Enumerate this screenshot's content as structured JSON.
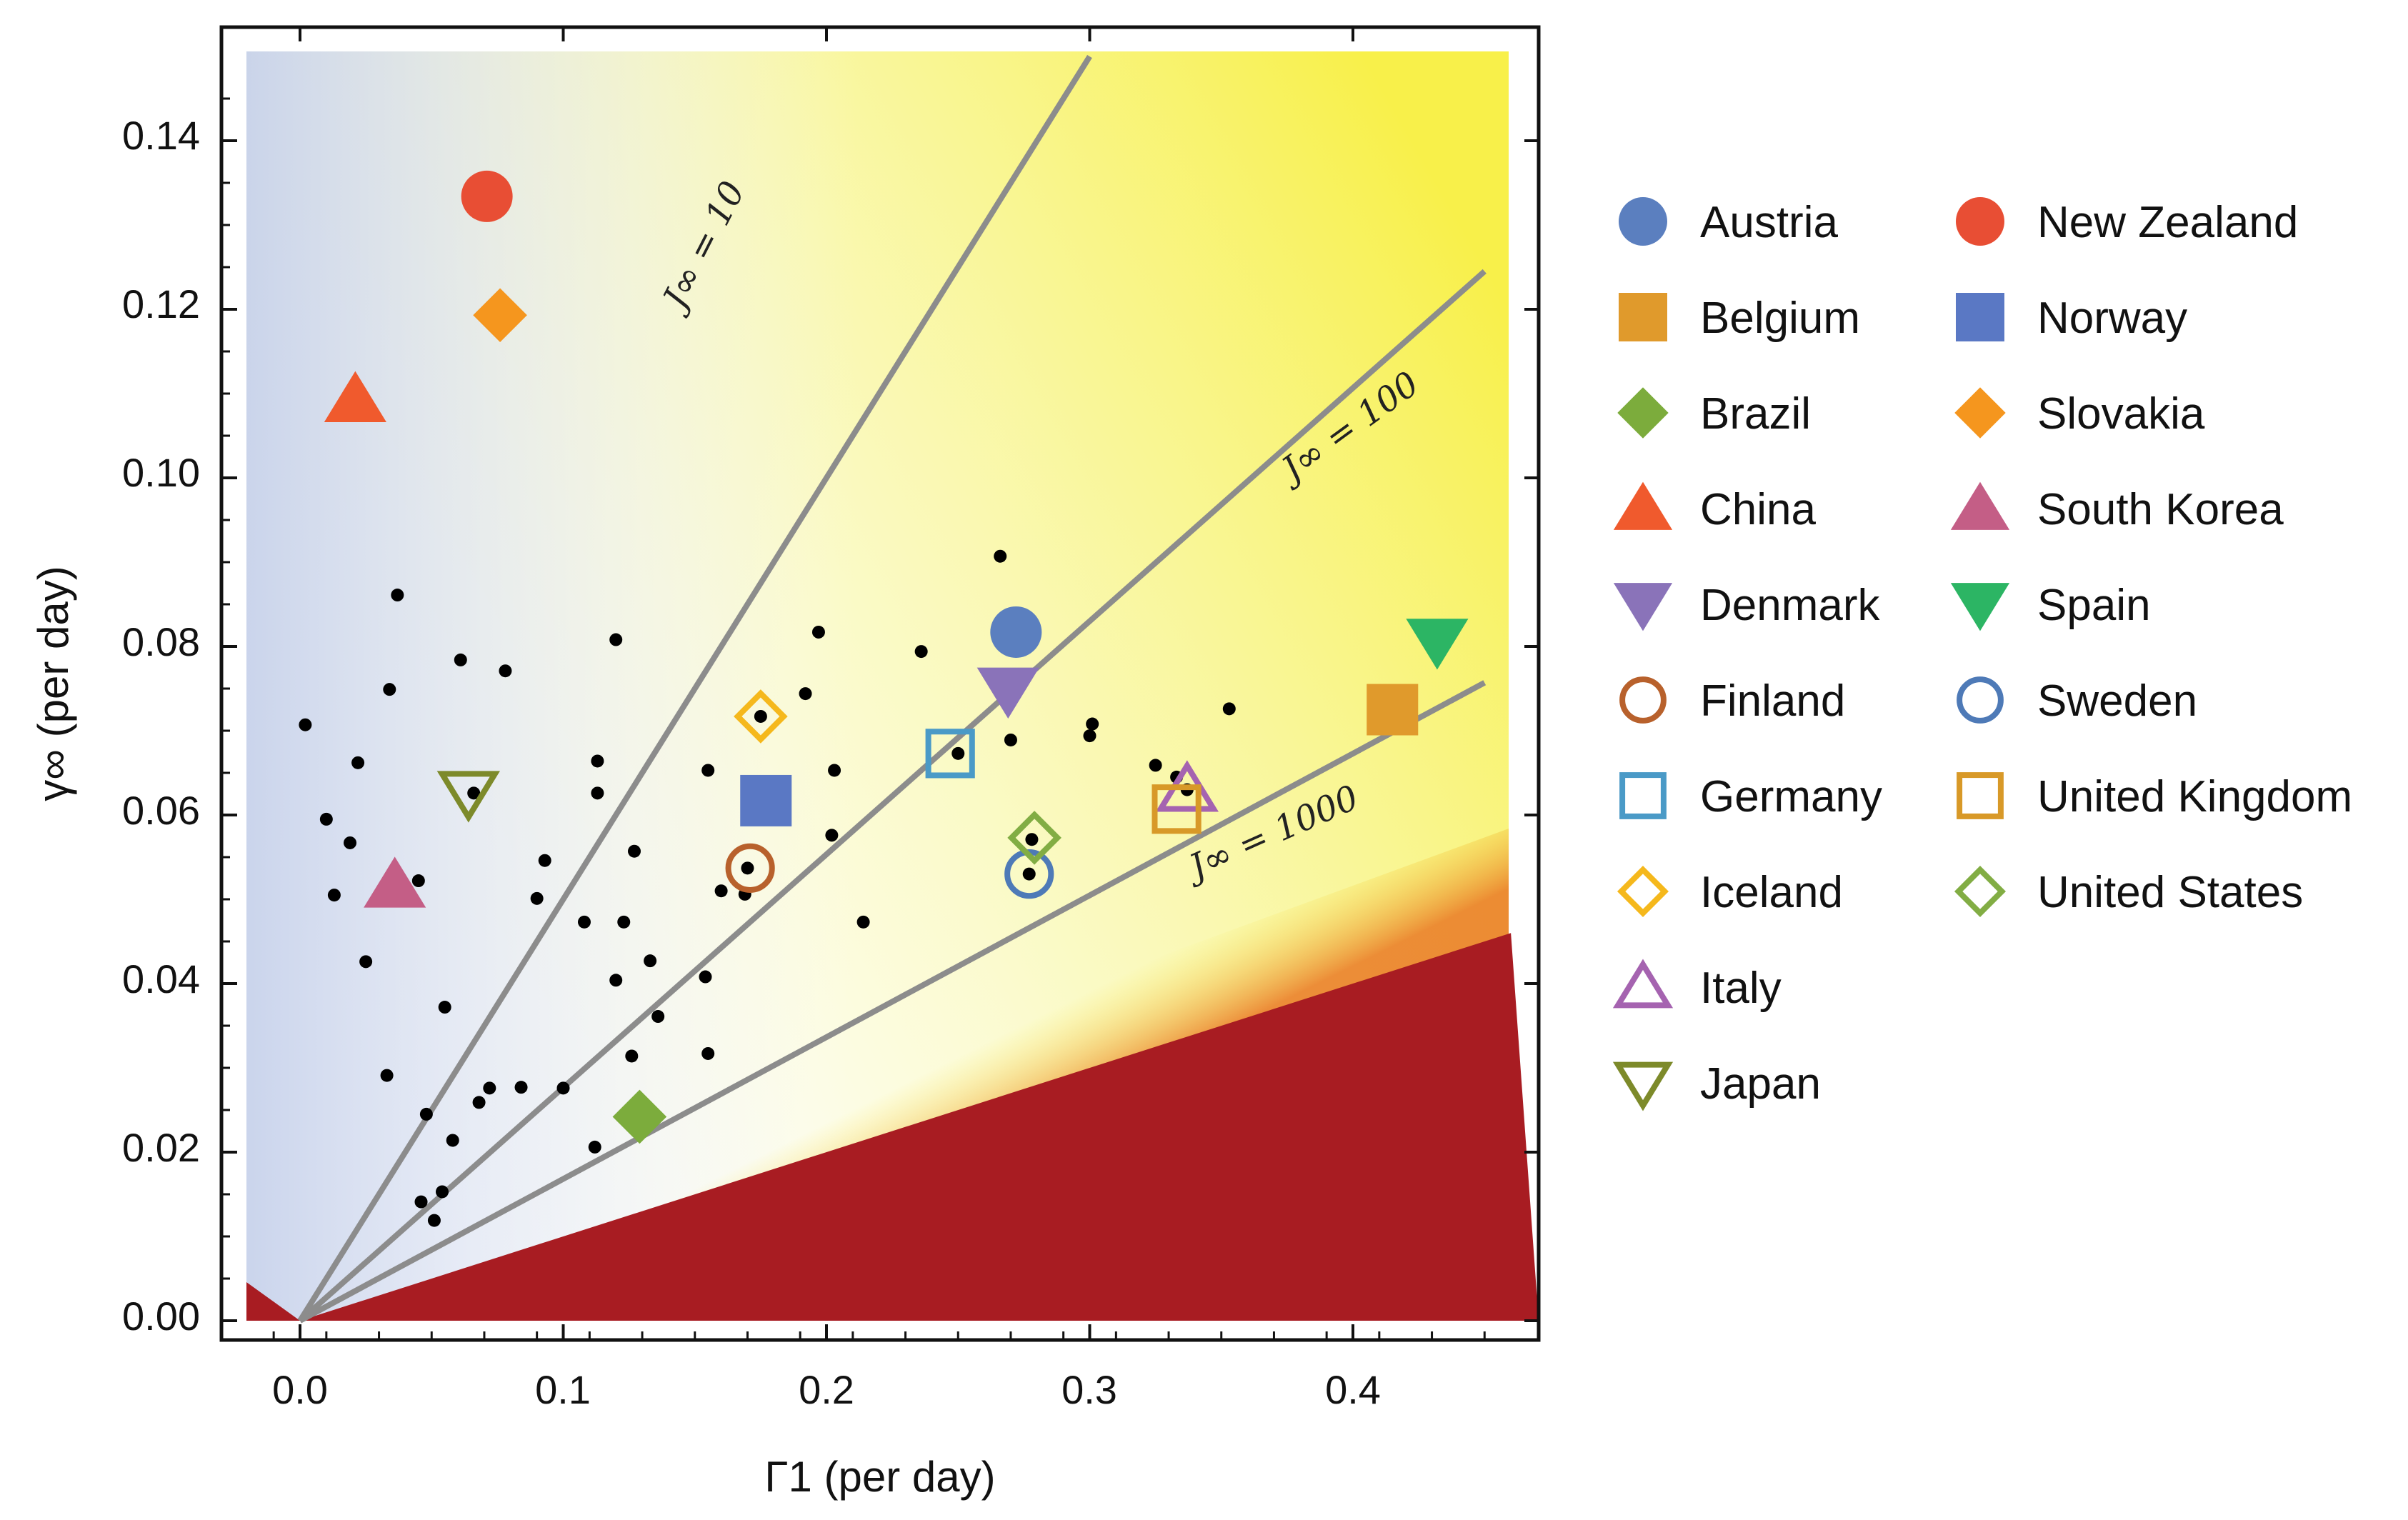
{
  "chart_data": {
    "type": "scatter",
    "title": "",
    "xlabel": "Γ1 (per day)",
    "ylabel": "γ∞ (per day)",
    "xlim": [
      -0.02,
      0.46
    ],
    "ylim": [
      -0.003,
      0.15
    ],
    "xticks": [
      0.0,
      0.1,
      0.2,
      0.3,
      0.4
    ],
    "xtick_labels": [
      "0.0",
      "0.1",
      "0.2",
      "0.3",
      "0.4"
    ],
    "yticks": [
      0.0,
      0.02,
      0.04,
      0.06,
      0.08,
      0.1,
      0.12,
      0.14
    ],
    "ytick_labels": [
      "0.00",
      "0.02",
      "0.04",
      "0.06",
      "0.08",
      "0.10",
      "0.12",
      "0.14"
    ],
    "legend_position": "right",
    "reference_lines": [
      {
        "label": "J∞ = 10",
        "slope": 0.5,
        "x_end": 0.3,
        "y_end": 0.15
      },
      {
        "label": "J∞ = 100",
        "slope": 0.276,
        "x_end": 0.45,
        "y_end": 0.1245
      },
      {
        "label": "J∞ = 1000",
        "slope": 0.168,
        "x_end": 0.45,
        "y_end": 0.0757
      }
    ],
    "region_colors": {
      "low": "#c5d0ea",
      "mid": "#f9f9f4",
      "high": "#f8f04a",
      "extreme": "#a81c22"
    },
    "background_points": [
      [
        0.002,
        0.0707
      ],
      [
        0.01,
        0.0595
      ],
      [
        0.013,
        0.0505
      ],
      [
        0.019,
        0.0567
      ],
      [
        0.022,
        0.0662
      ],
      [
        0.025,
        0.0426
      ],
      [
        0.033,
        0.0291
      ],
      [
        0.034,
        0.0749
      ],
      [
        0.037,
        0.0861
      ],
      [
        0.045,
        0.0522
      ],
      [
        0.046,
        0.0141
      ],
      [
        0.048,
        0.0245
      ],
      [
        0.051,
        0.0119
      ],
      [
        0.054,
        0.0153
      ],
      [
        0.055,
        0.0372
      ],
      [
        0.058,
        0.0214
      ],
      [
        0.061,
        0.0784
      ],
      [
        0.066,
        0.0626
      ],
      [
        0.068,
        0.0259
      ],
      [
        0.072,
        0.0276
      ],
      [
        0.078,
        0.0771
      ],
      [
        0.084,
        0.0277
      ],
      [
        0.09,
        0.0501
      ],
      [
        0.093,
        0.0546
      ],
      [
        0.1,
        0.0276
      ],
      [
        0.108,
        0.0473
      ],
      [
        0.112,
        0.0206
      ],
      [
        0.113,
        0.0626
      ],
      [
        0.113,
        0.0664
      ],
      [
        0.12,
        0.0808
      ],
      [
        0.12,
        0.0404
      ],
      [
        0.123,
        0.0473
      ],
      [
        0.126,
        0.0314
      ],
      [
        0.127,
        0.0557
      ],
      [
        0.133,
        0.0427
      ],
      [
        0.136,
        0.0361
      ],
      [
        0.154,
        0.0408
      ],
      [
        0.155,
        0.0653
      ],
      [
        0.155,
        0.0317
      ],
      [
        0.16,
        0.051
      ],
      [
        0.169,
        0.0506
      ],
      [
        0.17,
        0.0537
      ],
      [
        0.175,
        0.0717
      ],
      [
        0.176,
        0.0625
      ],
      [
        0.192,
        0.0744
      ],
      [
        0.197,
        0.0817
      ],
      [
        0.202,
        0.0576
      ],
      [
        0.203,
        0.0653
      ],
      [
        0.214,
        0.0473
      ],
      [
        0.236,
        0.0794
      ],
      [
        0.25,
        0.0673
      ],
      [
        0.266,
        0.0907
      ],
      [
        0.27,
        0.0689
      ],
      [
        0.277,
        0.053
      ],
      [
        0.278,
        0.0571
      ],
      [
        0.3,
        0.0694
      ],
      [
        0.301,
        0.0708
      ],
      [
        0.325,
        0.0659
      ],
      [
        0.333,
        0.0645
      ],
      [
        0.337,
        0.063
      ],
      [
        0.353,
        0.0726
      ]
    ],
    "series": [
      {
        "name": "Austria",
        "x": 0.272,
        "y": 0.0817,
        "marker": "circle",
        "filled": true,
        "color": "#5b7fbf"
      },
      {
        "name": "Belgium",
        "x": 0.415,
        "y": 0.0725,
        "marker": "square",
        "filled": true,
        "color": "#e09a2c"
      },
      {
        "name": "Brazil",
        "x": 0.129,
        "y": 0.0242,
        "marker": "diamond",
        "filled": true,
        "color": "#7cac3c"
      },
      {
        "name": "China",
        "x": 0.021,
        "y": 0.1093,
        "marker": "triangle-up",
        "filled": true,
        "color": "#f05a2d"
      },
      {
        "name": "Denmark",
        "x": 0.269,
        "y": 0.0748,
        "marker": "triangle-down",
        "filled": true,
        "color": "#8a73b9"
      },
      {
        "name": "Finland",
        "x": 0.171,
        "y": 0.0537,
        "marker": "circle",
        "filled": false,
        "color": "#b8612c"
      },
      {
        "name": "Germany",
        "x": 0.247,
        "y": 0.0673,
        "marker": "square",
        "filled": false,
        "color": "#4a9ac7"
      },
      {
        "name": "Iceland",
        "x": 0.175,
        "y": 0.0717,
        "marker": "diamond",
        "filled": false,
        "color": "#f5b81c"
      },
      {
        "name": "Italy",
        "x": 0.337,
        "y": 0.063,
        "marker": "triangle-up",
        "filled": false,
        "color": "#a563b0"
      },
      {
        "name": "Japan",
        "x": 0.064,
        "y": 0.0626,
        "marker": "triangle-down",
        "filled": false,
        "color": "#7d8a2a"
      },
      {
        "name": "New Zealand",
        "x": 0.071,
        "y": 0.1334,
        "marker": "circle",
        "filled": true,
        "color": "#e84e34"
      },
      {
        "name": "Norway",
        "x": 0.177,
        "y": 0.0617,
        "marker": "square",
        "filled": true,
        "color": "#5a78c4"
      },
      {
        "name": "Slovakia",
        "x": 0.076,
        "y": 0.1193,
        "marker": "diamond",
        "filled": true,
        "color": "#f5961e"
      },
      {
        "name": "South Korea",
        "x": 0.036,
        "y": 0.0517,
        "marker": "triangle-up",
        "filled": true,
        "color": "#c45e86"
      },
      {
        "name": "Spain",
        "x": 0.432,
        "y": 0.0806,
        "marker": "triangle-down",
        "filled": true,
        "color": "#2cb564"
      },
      {
        "name": "Sweden",
        "x": 0.277,
        "y": 0.053,
        "marker": "circle",
        "filled": false,
        "color": "#4e7ab7"
      },
      {
        "name": "United Kingdom",
        "x": 0.333,
        "y": 0.0607,
        "marker": "square",
        "filled": false,
        "color": "#d89928"
      },
      {
        "name": "United States",
        "x": 0.279,
        "y": 0.0573,
        "marker": "diamond",
        "filled": false,
        "color": "#82ad44"
      }
    ]
  }
}
